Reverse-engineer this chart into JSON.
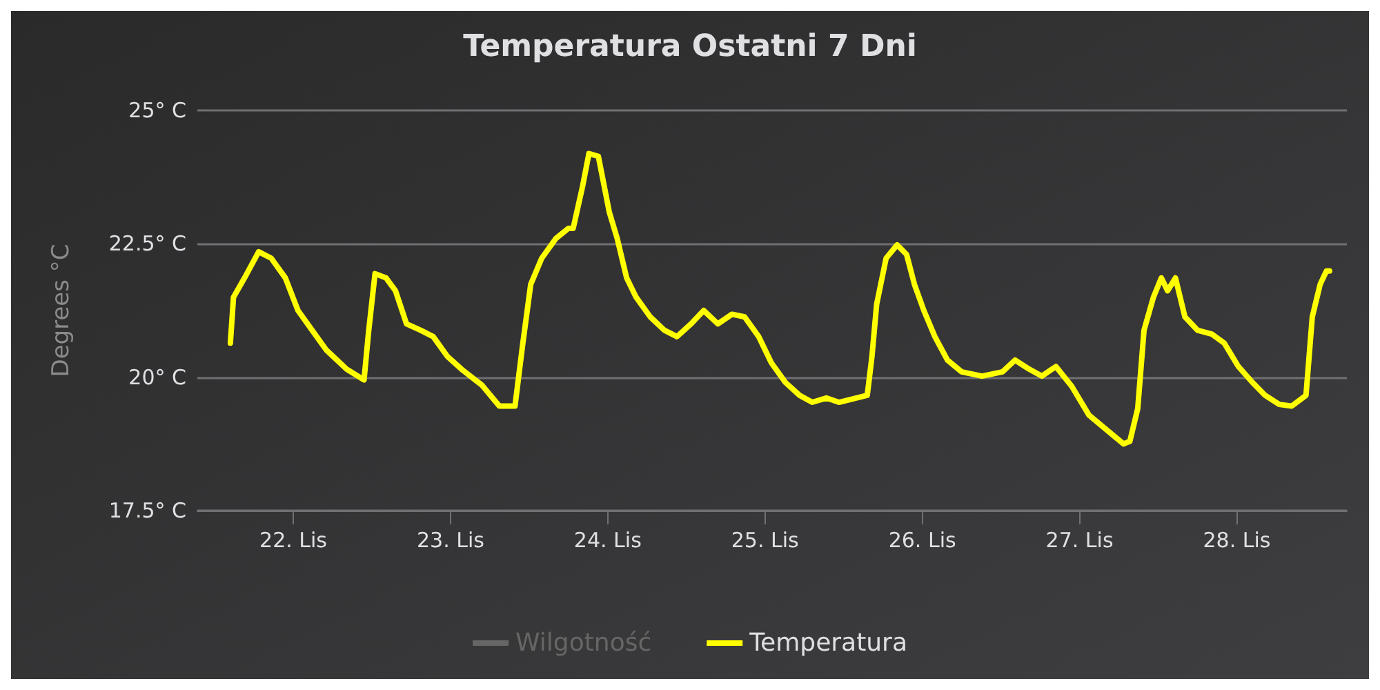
{
  "chart_data": {
    "type": "line",
    "title": "Temperatura Ostatni 7 Dni",
    "ylabel": "Degrees °C",
    "xlim": [
      21.39,
      28.7
    ],
    "xticks": [
      {
        "value": 22,
        "label": "22. Lis"
      },
      {
        "value": 23,
        "label": "23. Lis"
      },
      {
        "value": 24,
        "label": "24. Lis"
      },
      {
        "value": 25,
        "label": "25. Lis"
      },
      {
        "value": 26,
        "label": "26. Lis"
      },
      {
        "value": 27,
        "label": "27. Lis"
      },
      {
        "value": 28,
        "label": "28. Lis"
      }
    ],
    "ylim": [
      17.5,
      25
    ],
    "yticks": [
      {
        "value": 17.5,
        "label": "17.5° C"
      },
      {
        "value": 20,
        "label": "20° C"
      },
      {
        "value": 22.5,
        "label": "22.5° C"
      },
      {
        "value": 25,
        "label": "25° C"
      }
    ],
    "grid": "y",
    "legend": "bottom",
    "marker": "none",
    "line_style": "solid",
    "series": [
      {
        "name": "Wilgotność",
        "color": "#666666"
      },
      {
        "name": "Temperatura",
        "color": "#ffff00",
        "x": [
          21.6,
          21.62,
          21.69,
          21.78,
          21.86,
          21.95,
          22.03,
          22.12,
          22.21,
          22.34,
          22.45,
          22.48,
          22.52,
          22.59,
          22.65,
          22.72,
          22.81,
          22.89,
          22.98,
          23.07,
          23.2,
          23.31,
          23.41,
          23.46,
          23.51,
          23.58,
          23.67,
          23.75,
          23.78,
          23.84,
          23.88,
          23.94,
          24.01,
          24.06,
          24.12,
          24.18,
          24.27,
          24.36,
          24.44,
          24.53,
          24.61,
          24.7,
          24.79,
          24.87,
          24.96,
          25.04,
          25.13,
          25.22,
          25.3,
          25.39,
          25.47,
          25.65,
          25.68,
          25.71,
          25.77,
          25.84,
          25.9,
          25.95,
          26.01,
          26.08,
          26.16,
          26.25,
          26.38,
          26.51,
          26.59,
          26.68,
          26.76,
          26.85,
          26.95,
          27.06,
          27.19,
          27.28,
          27.32,
          27.37,
          27.41,
          27.47,
          27.52,
          27.56,
          27.61,
          27.67,
          27.75,
          27.84,
          27.92,
          28.01,
          28.1,
          28.18,
          28.27,
          28.35,
          28.44,
          28.48,
          28.53,
          28.57,
          28.59
        ],
        "values": [
          20.64,
          21.5,
          21.86,
          22.35,
          22.23,
          21.86,
          21.25,
          20.88,
          20.51,
          20.15,
          19.95,
          20.88,
          21.94,
          21.86,
          21.62,
          21.0,
          20.88,
          20.76,
          20.39,
          20.15,
          19.85,
          19.46,
          19.46,
          20.64,
          21.74,
          22.23,
          22.6,
          22.79,
          22.79,
          23.58,
          24.19,
          24.14,
          23.09,
          22.6,
          21.86,
          21.5,
          21.13,
          20.88,
          20.76,
          21.0,
          21.25,
          21.0,
          21.18,
          21.13,
          20.76,
          20.27,
          19.9,
          19.66,
          19.53,
          19.61,
          19.53,
          19.66,
          20.39,
          21.37,
          22.23,
          22.48,
          22.3,
          21.74,
          21.25,
          20.76,
          20.32,
          20.1,
          20.02,
          20.1,
          20.32,
          20.15,
          20.02,
          20.2,
          19.83,
          19.29,
          18.97,
          18.75,
          18.8,
          19.41,
          20.88,
          21.5,
          21.86,
          21.62,
          21.86,
          21.13,
          20.88,
          20.81,
          20.64,
          20.2,
          19.9,
          19.66,
          19.49,
          19.46,
          19.66,
          21.13,
          21.74,
          21.99,
          21.99
        ]
      }
    ]
  }
}
